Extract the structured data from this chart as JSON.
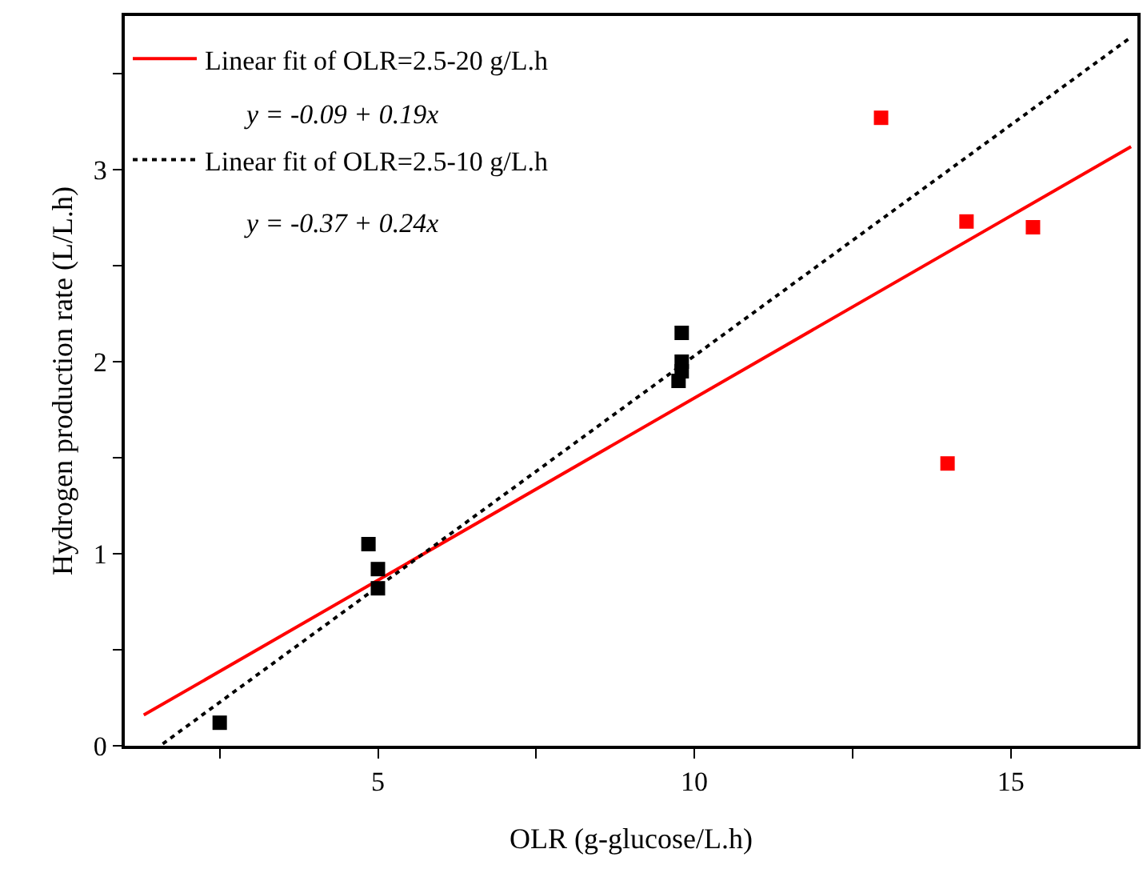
{
  "chart_data": {
    "type": "scatter",
    "xlabel": "OLR (g-glucose/L.h)",
    "ylabel": "Hydrogen production rate (L/L.h)",
    "xlim": [
      1,
      17
    ],
    "ylim": [
      0,
      3.8
    ],
    "xticks": [
      {
        "value": 2.5,
        "label": null
      },
      5,
      {
        "value": 7.5,
        "label": null
      },
      10,
      {
        "value": 12.5,
        "label": null
      },
      15
    ],
    "yticks": [
      0,
      {
        "value": 0.5,
        "label": null
      },
      1,
      {
        "value": 1.5,
        "label": null
      },
      2,
      {
        "value": 2.5,
        "label": null
      },
      3,
      {
        "value": 3.5,
        "label": null
      }
    ],
    "grid": false,
    "legend": "top left",
    "marker": "square",
    "series": [
      {
        "type": "line",
        "name": "Linear fit of OLR=2.5-20 g/L.h",
        "color": "#ff0000",
        "x": [
          1.3,
          16.9
        ],
        "values": [
          0.16,
          3.12
        ],
        "marker": "none",
        "line_style": "solid"
      },
      {
        "type": "line",
        "name": "Linear fit of OLR=2.5-10 g/L.h",
        "color": "#000000",
        "x": [
          1.6,
          16.9
        ],
        "values": [
          0.01,
          3.69
        ],
        "marker": "none",
        "line_style": "dotted"
      },
      {
        "color": "#000000",
        "x": [
          2.5,
          4.85,
          5,
          5,
          9.8,
          9.8,
          9.8,
          9.75
        ],
        "values": [
          0.12,
          1.05,
          0.92,
          0.82,
          2.15,
          2.0,
          1.95,
          1.9
        ]
      },
      {
        "color": "#ff0000",
        "x": [
          12.95,
          14,
          14.3,
          15.35
        ],
        "values": [
          3.27,
          1.47,
          2.73,
          2.7
        ]
      }
    ],
    "annotations": [
      "y = -0.09 + 0.19x",
      "y = -0.37 + 0.24x"
    ]
  }
}
